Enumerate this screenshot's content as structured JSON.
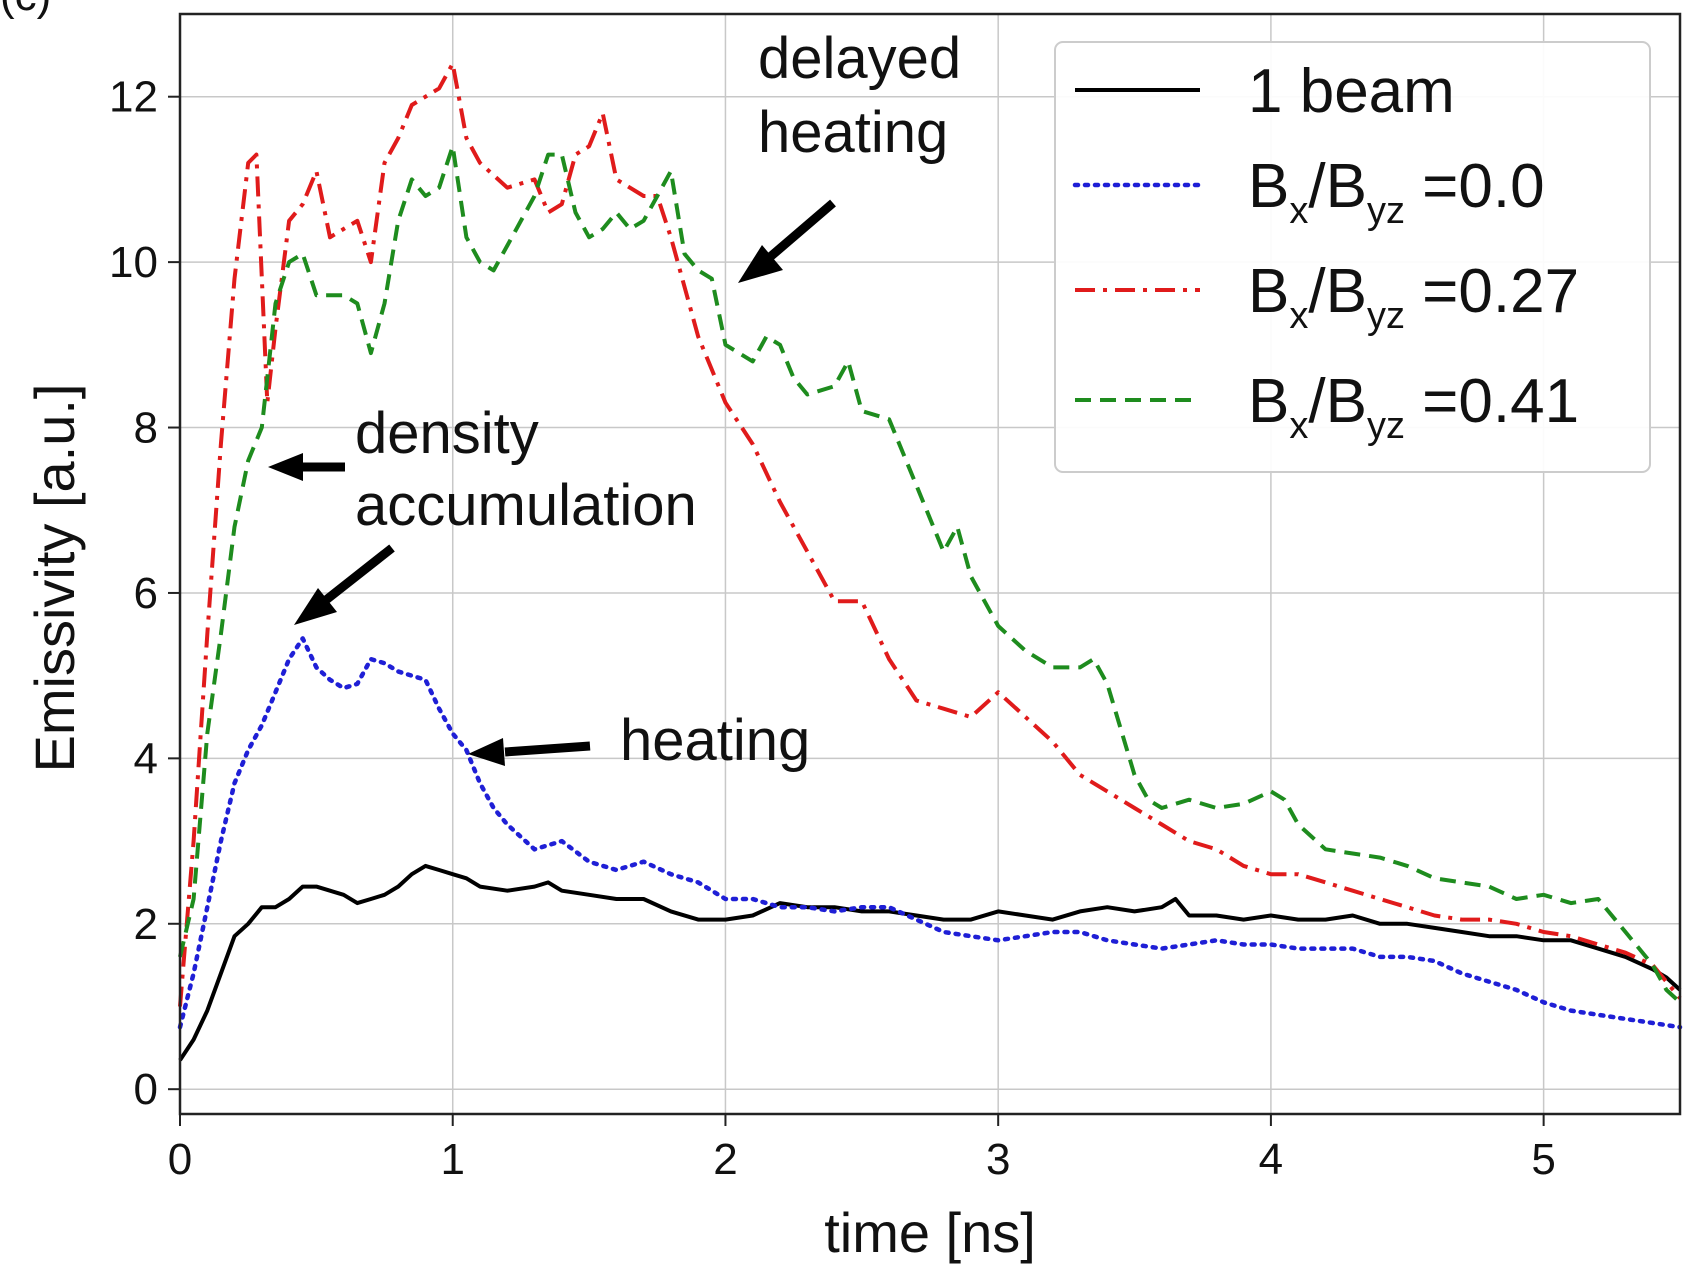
{
  "panel_label": "(c)",
  "chart_data": {
    "type": "line",
    "xlabel": "time [ns]",
    "ylabel": "Emissivity [a.u.]",
    "xlim": [
      0,
      5.5
    ],
    "ylim": [
      -0.3,
      13.0
    ],
    "xticks": [
      "0",
      "1",
      "2",
      "3",
      "4",
      "5"
    ],
    "yticks": [
      "0",
      "2",
      "4",
      "6",
      "8",
      "10",
      "12"
    ],
    "grid": true,
    "legend_position": "top-right",
    "legend": [
      {
        "main": "1 beam",
        "sub1": "",
        "mid": "",
        "sub2": "",
        "tail": ""
      },
      {
        "main": "B",
        "sub1": "x",
        "mid": "/B",
        "sub2": "yz",
        "tail": " =0.0"
      },
      {
        "main": "B",
        "sub1": "x",
        "mid": "/B",
        "sub2": "yz",
        "tail": " =0.27"
      },
      {
        "main": "B",
        "sub1": "x",
        "mid": "/B",
        "sub2": "yz",
        "tail": " =0.41"
      }
    ],
    "annotations": [
      {
        "lines": [
          "delayed",
          "heating"
        ]
      },
      {
        "lines": [
          "density",
          "accumulation"
        ]
      },
      {
        "lines": [
          "heating"
        ]
      }
    ],
    "series": [
      {
        "color": "#000000",
        "style": "solid",
        "points": [
          [
            0,
            0.35
          ],
          [
            0.05,
            0.6
          ],
          [
            0.1,
            0.95
          ],
          [
            0.15,
            1.4
          ],
          [
            0.2,
            1.85
          ],
          [
            0.25,
            2.0
          ],
          [
            0.3,
            2.2
          ],
          [
            0.35,
            2.2
          ],
          [
            0.4,
            2.3
          ],
          [
            0.45,
            2.45
          ],
          [
            0.5,
            2.45
          ],
          [
            0.55,
            2.4
          ],
          [
            0.6,
            2.35
          ],
          [
            0.65,
            2.25
          ],
          [
            0.7,
            2.3
          ],
          [
            0.75,
            2.35
          ],
          [
            0.8,
            2.45
          ],
          [
            0.85,
            2.6
          ],
          [
            0.9,
            2.7
          ],
          [
            0.95,
            2.65
          ],
          [
            1.0,
            2.6
          ],
          [
            1.05,
            2.55
          ],
          [
            1.1,
            2.45
          ],
          [
            1.2,
            2.4
          ],
          [
            1.3,
            2.45
          ],
          [
            1.35,
            2.5
          ],
          [
            1.4,
            2.4
          ],
          [
            1.5,
            2.35
          ],
          [
            1.6,
            2.3
          ],
          [
            1.7,
            2.3
          ],
          [
            1.8,
            2.15
          ],
          [
            1.9,
            2.05
          ],
          [
            2.0,
            2.05
          ],
          [
            2.1,
            2.1
          ],
          [
            2.2,
            2.25
          ],
          [
            2.3,
            2.2
          ],
          [
            2.4,
            2.2
          ],
          [
            2.5,
            2.15
          ],
          [
            2.6,
            2.15
          ],
          [
            2.7,
            2.1
          ],
          [
            2.8,
            2.05
          ],
          [
            2.9,
            2.05
          ],
          [
            3.0,
            2.15
          ],
          [
            3.1,
            2.1
          ],
          [
            3.2,
            2.05
          ],
          [
            3.3,
            2.15
          ],
          [
            3.4,
            2.2
          ],
          [
            3.5,
            2.15
          ],
          [
            3.6,
            2.2
          ],
          [
            3.65,
            2.3
          ],
          [
            3.7,
            2.1
          ],
          [
            3.8,
            2.1
          ],
          [
            3.9,
            2.05
          ],
          [
            4.0,
            2.1
          ],
          [
            4.1,
            2.05
          ],
          [
            4.2,
            2.05
          ],
          [
            4.3,
            2.1
          ],
          [
            4.4,
            2.0
          ],
          [
            4.5,
            2.0
          ],
          [
            4.6,
            1.95
          ],
          [
            4.7,
            1.9
          ],
          [
            4.8,
            1.85
          ],
          [
            4.9,
            1.85
          ],
          [
            5.0,
            1.8
          ],
          [
            5.1,
            1.8
          ],
          [
            5.2,
            1.7
          ],
          [
            5.3,
            1.6
          ],
          [
            5.4,
            1.45
          ],
          [
            5.45,
            1.35
          ],
          [
            5.5,
            1.2
          ]
        ]
      },
      {
        "color": "#1f1fd6",
        "style": "dotted",
        "points": [
          [
            0,
            0.75
          ],
          [
            0.05,
            1.4
          ],
          [
            0.1,
            2.2
          ],
          [
            0.15,
            3.0
          ],
          [
            0.2,
            3.7
          ],
          [
            0.25,
            4.1
          ],
          [
            0.3,
            4.4
          ],
          [
            0.35,
            4.8
          ],
          [
            0.4,
            5.2
          ],
          [
            0.45,
            5.45
          ],
          [
            0.5,
            5.1
          ],
          [
            0.55,
            4.95
          ],
          [
            0.6,
            4.85
          ],
          [
            0.65,
            4.9
          ],
          [
            0.7,
            5.2
          ],
          [
            0.75,
            5.15
          ],
          [
            0.8,
            5.05
          ],
          [
            0.85,
            5.0
          ],
          [
            0.9,
            4.95
          ],
          [
            0.95,
            4.6
          ],
          [
            1.0,
            4.3
          ],
          [
            1.05,
            4.1
          ],
          [
            1.1,
            3.7
          ],
          [
            1.15,
            3.4
          ],
          [
            1.2,
            3.2
          ],
          [
            1.3,
            2.9
          ],
          [
            1.4,
            3.0
          ],
          [
            1.5,
            2.75
          ],
          [
            1.6,
            2.65
          ],
          [
            1.7,
            2.75
          ],
          [
            1.8,
            2.6
          ],
          [
            1.9,
            2.5
          ],
          [
            2.0,
            2.3
          ],
          [
            2.1,
            2.3
          ],
          [
            2.2,
            2.2
          ],
          [
            2.3,
            2.2
          ],
          [
            2.4,
            2.15
          ],
          [
            2.5,
            2.2
          ],
          [
            2.6,
            2.2
          ],
          [
            2.7,
            2.05
          ],
          [
            2.8,
            1.9
          ],
          [
            2.9,
            1.85
          ],
          [
            3.0,
            1.8
          ],
          [
            3.1,
            1.85
          ],
          [
            3.2,
            1.9
          ],
          [
            3.3,
            1.9
          ],
          [
            3.4,
            1.8
          ],
          [
            3.5,
            1.75
          ],
          [
            3.6,
            1.7
          ],
          [
            3.7,
            1.75
          ],
          [
            3.8,
            1.8
          ],
          [
            3.9,
            1.75
          ],
          [
            4.0,
            1.75
          ],
          [
            4.1,
            1.7
          ],
          [
            4.2,
            1.7
          ],
          [
            4.3,
            1.7
          ],
          [
            4.4,
            1.6
          ],
          [
            4.5,
            1.6
          ],
          [
            4.6,
            1.55
          ],
          [
            4.7,
            1.4
          ],
          [
            4.8,
            1.3
          ],
          [
            4.9,
            1.2
          ],
          [
            5.0,
            1.05
          ],
          [
            5.1,
            0.95
          ],
          [
            5.2,
            0.9
          ],
          [
            5.3,
            0.85
          ],
          [
            5.4,
            0.8
          ],
          [
            5.5,
            0.75
          ]
        ]
      },
      {
        "color": "#e01b1b",
        "style": "dashdot",
        "points": [
          [
            0,
            1.0
          ],
          [
            0.05,
            3.0
          ],
          [
            0.1,
            5.5
          ],
          [
            0.15,
            7.8
          ],
          [
            0.2,
            9.8
          ],
          [
            0.25,
            11.2
          ],
          [
            0.28,
            11.3
          ],
          [
            0.32,
            8.3
          ],
          [
            0.35,
            9.2
          ],
          [
            0.4,
            10.5
          ],
          [
            0.45,
            10.7
          ],
          [
            0.5,
            11.1
          ],
          [
            0.55,
            10.3
          ],
          [
            0.6,
            10.4
          ],
          [
            0.65,
            10.5
          ],
          [
            0.7,
            10.0
          ],
          [
            0.75,
            11.2
          ],
          [
            0.8,
            11.5
          ],
          [
            0.85,
            11.9
          ],
          [
            0.9,
            12.0
          ],
          [
            0.95,
            12.1
          ],
          [
            1.0,
            12.4
          ],
          [
            1.05,
            11.5
          ],
          [
            1.1,
            11.2
          ],
          [
            1.2,
            10.9
          ],
          [
            1.3,
            11.0
          ],
          [
            1.35,
            10.6
          ],
          [
            1.4,
            10.7
          ],
          [
            1.45,
            11.3
          ],
          [
            1.5,
            11.4
          ],
          [
            1.55,
            11.8
          ],
          [
            1.6,
            11.0
          ],
          [
            1.65,
            10.9
          ],
          [
            1.7,
            10.8
          ],
          [
            1.75,
            10.8
          ],
          [
            1.8,
            10.3
          ],
          [
            1.9,
            9.1
          ],
          [
            2.0,
            8.3
          ],
          [
            2.1,
            7.8
          ],
          [
            2.2,
            7.1
          ],
          [
            2.3,
            6.5
          ],
          [
            2.4,
            5.9
          ],
          [
            2.5,
            5.9
          ],
          [
            2.6,
            5.2
          ],
          [
            2.7,
            4.7
          ],
          [
            2.8,
            4.6
          ],
          [
            2.9,
            4.5
          ],
          [
            3.0,
            4.8
          ],
          [
            3.1,
            4.5
          ],
          [
            3.2,
            4.2
          ],
          [
            3.3,
            3.8
          ],
          [
            3.4,
            3.6
          ],
          [
            3.5,
            3.4
          ],
          [
            3.6,
            3.2
          ],
          [
            3.7,
            3.0
          ],
          [
            3.8,
            2.9
          ],
          [
            3.9,
            2.7
          ],
          [
            4.0,
            2.6
          ],
          [
            4.1,
            2.6
          ],
          [
            4.2,
            2.5
          ],
          [
            4.3,
            2.4
          ],
          [
            4.4,
            2.3
          ],
          [
            4.5,
            2.2
          ],
          [
            4.6,
            2.1
          ],
          [
            4.7,
            2.05
          ],
          [
            4.8,
            2.05
          ],
          [
            4.9,
            2.0
          ],
          [
            5.0,
            1.9
          ],
          [
            5.1,
            1.85
          ],
          [
            5.2,
            1.75
          ],
          [
            5.3,
            1.65
          ],
          [
            5.4,
            1.5
          ],
          [
            5.5,
            1.1
          ]
        ]
      },
      {
        "color": "#1e8c1e",
        "style": "dashed",
        "points": [
          [
            0,
            1.6
          ],
          [
            0.05,
            2.3
          ],
          [
            0.1,
            4.3
          ],
          [
            0.15,
            5.5
          ],
          [
            0.2,
            6.8
          ],
          [
            0.25,
            7.6
          ],
          [
            0.3,
            8.0
          ],
          [
            0.35,
            9.5
          ],
          [
            0.4,
            10.0
          ],
          [
            0.45,
            10.1
          ],
          [
            0.5,
            9.6
          ],
          [
            0.6,
            9.6
          ],
          [
            0.65,
            9.5
          ],
          [
            0.7,
            8.9
          ],
          [
            0.75,
            9.5
          ],
          [
            0.8,
            10.5
          ],
          [
            0.85,
            11.0
          ],
          [
            0.9,
            10.8
          ],
          [
            0.95,
            10.9
          ],
          [
            1.0,
            11.4
          ],
          [
            1.05,
            10.3
          ],
          [
            1.1,
            10.0
          ],
          [
            1.15,
            9.9
          ],
          [
            1.2,
            10.2
          ],
          [
            1.3,
            10.8
          ],
          [
            1.35,
            11.3
          ],
          [
            1.4,
            11.3
          ],
          [
            1.45,
            10.6
          ],
          [
            1.5,
            10.3
          ],
          [
            1.55,
            10.4
          ],
          [
            1.6,
            10.6
          ],
          [
            1.65,
            10.4
          ],
          [
            1.7,
            10.5
          ],
          [
            1.75,
            10.8
          ],
          [
            1.8,
            11.1
          ],
          [
            1.85,
            10.1
          ],
          [
            1.9,
            9.9
          ],
          [
            1.95,
            9.8
          ],
          [
            2.0,
            9.0
          ],
          [
            2.1,
            8.8
          ],
          [
            2.15,
            9.1
          ],
          [
            2.2,
            9.0
          ],
          [
            2.25,
            8.6
          ],
          [
            2.3,
            8.4
          ],
          [
            2.4,
            8.5
          ],
          [
            2.45,
            8.8
          ],
          [
            2.5,
            8.2
          ],
          [
            2.6,
            8.1
          ],
          [
            2.7,
            7.3
          ],
          [
            2.8,
            6.5
          ],
          [
            2.85,
            6.8
          ],
          [
            2.9,
            6.2
          ],
          [
            3.0,
            5.6
          ],
          [
            3.1,
            5.3
          ],
          [
            3.2,
            5.1
          ],
          [
            3.3,
            5.1
          ],
          [
            3.35,
            5.2
          ],
          [
            3.4,
            4.9
          ],
          [
            3.5,
            3.8
          ],
          [
            3.55,
            3.5
          ],
          [
            3.6,
            3.4
          ],
          [
            3.7,
            3.5
          ],
          [
            3.8,
            3.4
          ],
          [
            3.9,
            3.45
          ],
          [
            4.0,
            3.6
          ],
          [
            4.05,
            3.5
          ],
          [
            4.1,
            3.2
          ],
          [
            4.2,
            2.9
          ],
          [
            4.3,
            2.85
          ],
          [
            4.4,
            2.8
          ],
          [
            4.5,
            2.7
          ],
          [
            4.6,
            2.55
          ],
          [
            4.7,
            2.5
          ],
          [
            4.8,
            2.45
          ],
          [
            4.9,
            2.3
          ],
          [
            5.0,
            2.35
          ],
          [
            5.1,
            2.25
          ],
          [
            5.2,
            2.3
          ],
          [
            5.3,
            1.9
          ],
          [
            5.4,
            1.5
          ],
          [
            5.45,
            1.2
          ],
          [
            5.5,
            1.05
          ]
        ]
      }
    ]
  }
}
